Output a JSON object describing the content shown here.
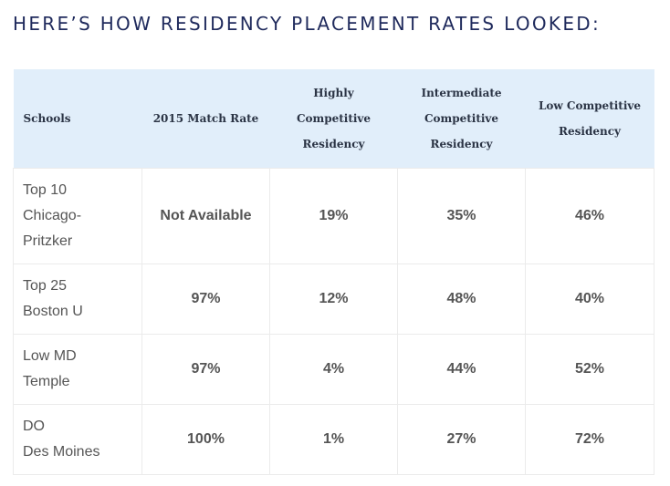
{
  "heading": "HERE’S HOW RESIDENCY PLACEMENT RATES LOOKED:",
  "table": {
    "headers": [
      [
        "Schools"
      ],
      [
        "2015 Match Rate"
      ],
      [
        "Highly",
        "Competitive",
        "Residency"
      ],
      [
        "Intermediate",
        "Competitive",
        "Residency"
      ],
      [
        "Low Competitive",
        "Residency"
      ]
    ],
    "rows": [
      {
        "school": [
          "Top 10",
          "Chicago-",
          "Pritzker"
        ],
        "match_rate": "Not Available",
        "highly": "19%",
        "intermediate": "35%",
        "low": "46%"
      },
      {
        "school": [
          "Top 25",
          "Boston U"
        ],
        "match_rate": "97%",
        "highly": "12%",
        "intermediate": "48%",
        "low": "40%"
      },
      {
        "school": [
          "Low MD",
          "Temple"
        ],
        "match_rate": "97%",
        "highly": "4%",
        "intermediate": "44%",
        "low": "52%"
      },
      {
        "school": [
          "DO",
          "Des Moines"
        ],
        "match_rate": "100%",
        "highly": "1%",
        "intermediate": "27%",
        "low": "72%"
      }
    ]
  },
  "colors": {
    "heading": "#1f2a5c",
    "header_bg": "#e1eefa",
    "text": "#555555",
    "border": "#ebebeb"
  }
}
